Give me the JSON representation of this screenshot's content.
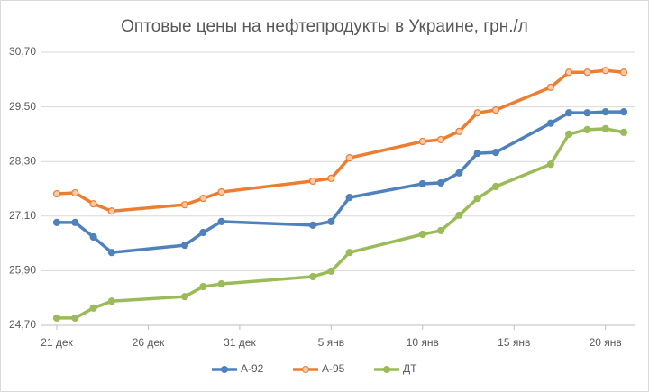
{
  "chart_data": {
    "type": "line",
    "title": "Оптовые цены на нефтепродукты в Украине, грн./л",
    "x": [
      "21 дек",
      "22 дек",
      "23 дек",
      "24 дек",
      "28 дек",
      "29 дек",
      "30 дек",
      "4 янв",
      "5 янв",
      "6 янв",
      "10 янв",
      "11 янв",
      "12 янв",
      "13 янв",
      "14 янв",
      "17 янв",
      "18 янв",
      "19 янв",
      "20 янв",
      "21 янв"
    ],
    "xlim": [
      "21 дек",
      "21 янв"
    ],
    "xticks": [
      "21 дек",
      "26 дек",
      "31 дек",
      "5 янв",
      "10 янв",
      "15 янв",
      "20 янв"
    ],
    "series": [
      {
        "name": "А-92",
        "color": "#4f81bd",
        "marker": "filled",
        "values": [
          26.96,
          26.96,
          26.64,
          26.3,
          26.46,
          26.74,
          26.98,
          26.9,
          26.98,
          27.51,
          27.81,
          27.83,
          28.05,
          28.48,
          28.5,
          29.14,
          29.37,
          29.37,
          29.39,
          29.39
        ]
      },
      {
        "name": "А-95",
        "color": "#ed7d31",
        "marker": "hollow",
        "values": [
          27.59,
          27.61,
          27.37,
          27.21,
          27.35,
          27.49,
          27.63,
          27.87,
          27.93,
          28.38,
          28.74,
          28.78,
          28.96,
          29.37,
          29.43,
          29.93,
          30.26,
          30.26,
          30.3,
          30.26
        ]
      },
      {
        "name": "ДТ",
        "color": "#9bbb59",
        "marker": "filled",
        "values": [
          24.86,
          24.86,
          25.08,
          25.23,
          25.33,
          25.55,
          25.61,
          25.77,
          25.89,
          26.3,
          26.7,
          26.78,
          27.12,
          27.49,
          27.75,
          28.24,
          28.9,
          29.0,
          29.02,
          28.94
        ]
      }
    ],
    "ylim": [
      24.7,
      30.7
    ],
    "yticks": [
      {
        "value": 24.7,
        "label": "24,70"
      },
      {
        "value": 25.9,
        "label": "25,90"
      },
      {
        "value": 27.1,
        "label": "27,10"
      },
      {
        "value": 28.3,
        "label": "28,30"
      },
      {
        "value": 29.5,
        "label": "29,50"
      },
      {
        "value": 30.7,
        "label": "30,70"
      }
    ],
    "grid": true,
    "legend": "bottom"
  }
}
